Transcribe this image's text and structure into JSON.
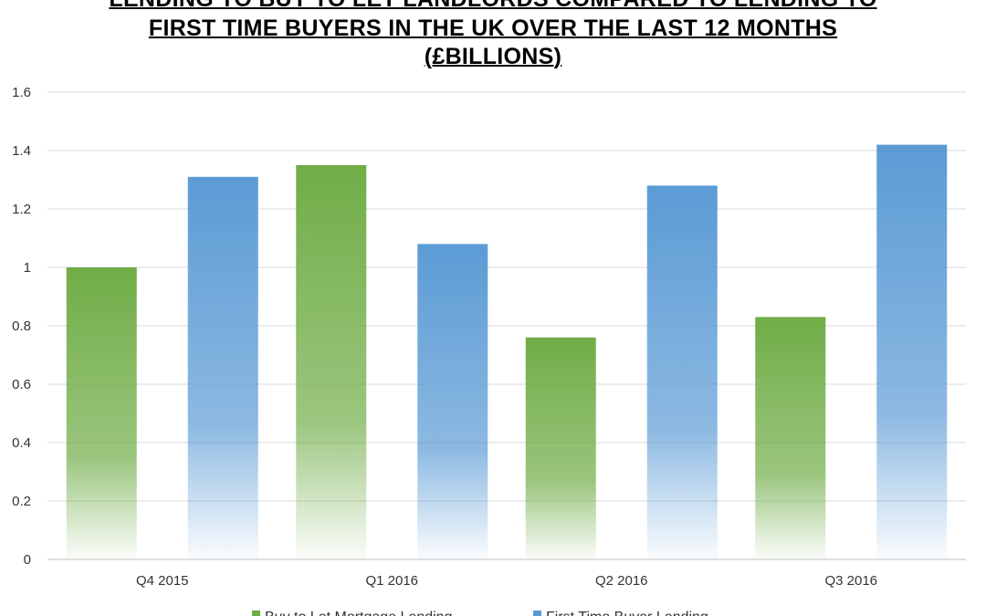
{
  "title_lines": [
    "LENDING TO BUY TO LET LANDLORDS COMPARED TO LENDING TO",
    "FIRST TIME BUYERS IN THE UK OVER THE LAST 12 MONTHS",
    "(£BILLIONS)"
  ],
  "chart_data": {
    "type": "bar",
    "categories": [
      "Q4 2015",
      "Q1 2016",
      "Q2 2016",
      "Q3 2016"
    ],
    "series": [
      {
        "name": "Buy to Let Mortgage Lending",
        "values": [
          1.0,
          1.35,
          0.76,
          0.83
        ],
        "color": "#70ad47"
      },
      {
        "name": "First Time Buyer Lending",
        "values": [
          1.31,
          1.08,
          1.28,
          1.42
        ],
        "color": "#5b9bd5"
      }
    ],
    "ylim": [
      0,
      1.6
    ],
    "yticks": [
      "0",
      "0.2",
      "0.4",
      "0.6",
      "0.8",
      "1",
      "1.2",
      "1.4",
      "1.6"
    ],
    "grid": true,
    "legend_position": "bottom"
  }
}
